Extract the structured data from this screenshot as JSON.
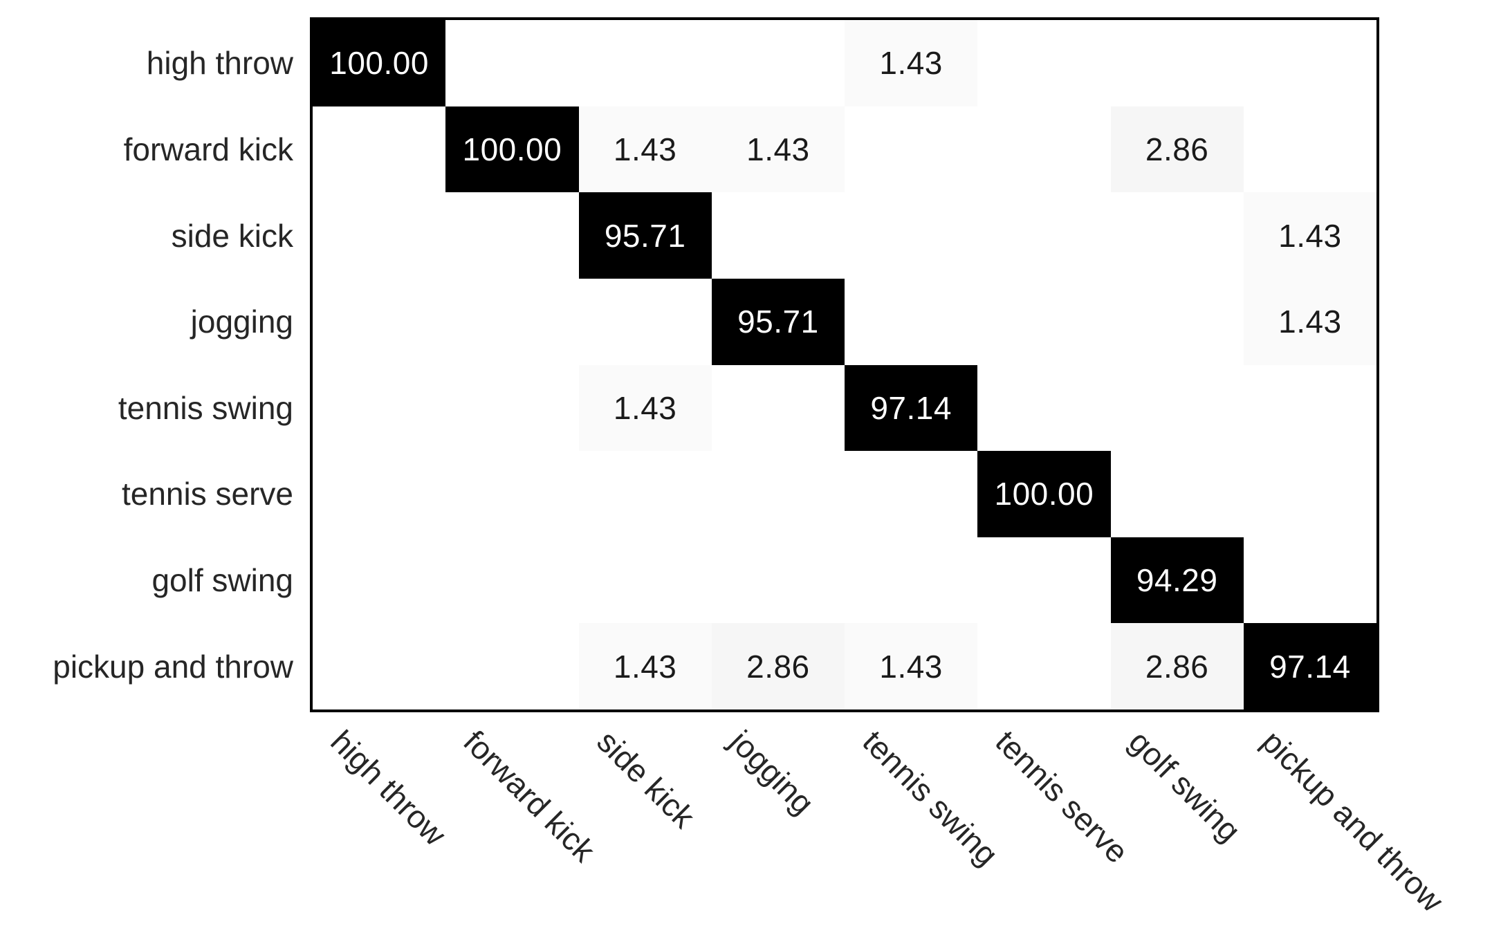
{
  "figure": {
    "description": "confusion matrix of action recognition accuracy (percent)"
  },
  "colors": {
    "background": "#ffffff",
    "frame": "#000000",
    "diagonal_cell_bg": "#000000",
    "diagonal_cell_text": "#ffffff",
    "offdiagonal_cell_text": "#1a1a1a",
    "tick_label": "#262626"
  },
  "chart_data": {
    "type": "heatmap",
    "subtype": "confusion-matrix",
    "title": "",
    "categories": [
      "high throw",
      "forward kick",
      "side kick",
      "jogging",
      "tennis swing",
      "tennis serve",
      "golf swing",
      "pickup and throw"
    ],
    "row_labels": [
      "high throw",
      "forward kick",
      "side kick",
      "jogging",
      "tennis swing",
      "tennis serve",
      "golf swing",
      "pickup and throw"
    ],
    "col_labels": [
      "high throw",
      "forward kick",
      "side kick",
      "jogging",
      "tennis swing",
      "tennis serve",
      "golf swing",
      "pickup and throw"
    ],
    "value_range": [
      0,
      100
    ],
    "value_format": "fixed-2-decimals",
    "zeros_hidden": true,
    "colormap": "white-to-black",
    "grid": false,
    "legend": false,
    "x_tick_rotation_deg": 45,
    "matrix": [
      [
        100.0,
        0,
        0,
        0,
        1.43,
        0,
        0,
        0
      ],
      [
        0,
        100.0,
        1.43,
        1.43,
        0,
        0,
        2.86,
        0
      ],
      [
        0,
        0,
        95.71,
        0,
        0,
        0,
        0,
        1.43
      ],
      [
        0,
        0,
        0,
        95.71,
        0,
        0,
        0,
        1.43
      ],
      [
        0,
        0,
        1.43,
        0,
        97.14,
        0,
        0,
        0
      ],
      [
        0,
        0,
        0,
        0,
        0,
        100.0,
        0,
        0
      ],
      [
        0,
        0,
        0,
        0,
        0,
        0,
        94.29,
        0
      ],
      [
        0,
        0,
        1.43,
        2.86,
        1.43,
        0,
        2.86,
        97.14
      ]
    ]
  }
}
